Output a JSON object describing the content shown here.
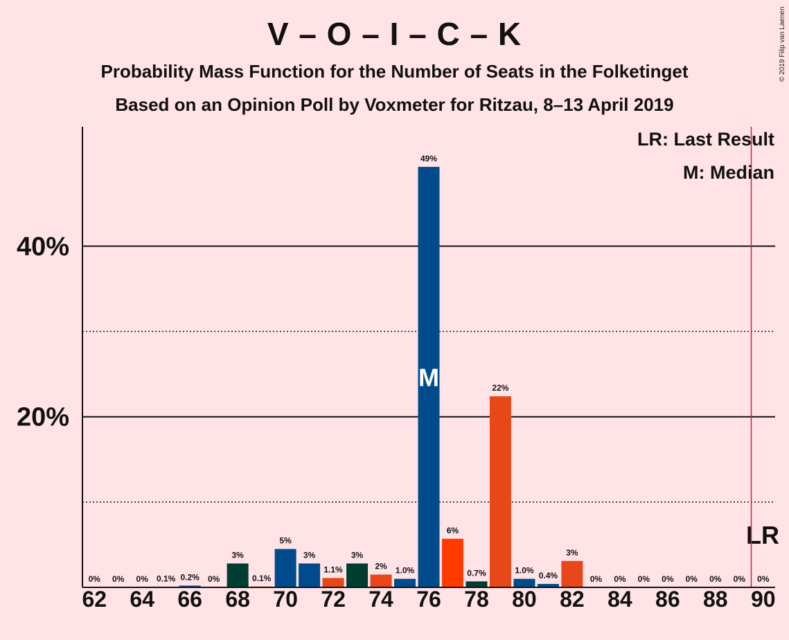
{
  "title": "V – O – I – C – K",
  "subtitle1": "Probability Mass Function for the Number of Seats in the Folketinget",
  "subtitle2": "Based on an Opinion Poll by Voxmeter for Ritzau, 8–13 April 2019",
  "copyright": "© 2019 Filip van Laenen",
  "chart_data": {
    "type": "bar",
    "x": [
      62,
      63,
      64,
      65,
      66,
      67,
      68,
      69,
      70,
      71,
      72,
      73,
      74,
      75,
      76,
      77,
      78,
      79,
      80,
      81,
      82,
      83,
      84,
      85,
      86,
      87,
      88,
      89,
      90
    ],
    "values": [
      0,
      0,
      0,
      0.05,
      0.2,
      0,
      2.8,
      0.1,
      4.5,
      2.8,
      1.1,
      2.8,
      1.5,
      1.0,
      49.3,
      5.7,
      0.7,
      22.4,
      1.0,
      0.4,
      3.1,
      0,
      0,
      0,
      0,
      0,
      0,
      0,
      0
    ],
    "labels": [
      "0%",
      "0%",
      "0%",
      "0.1%",
      "0.2%",
      "0%",
      "3%",
      "0.1%",
      "5%",
      "3%",
      "1.1%",
      "3%",
      "2%",
      "1.0%",
      "49%",
      "6%",
      "0.7%",
      "22%",
      "1.0%",
      "0.4%",
      "3%",
      "0%",
      "0%",
      "0%",
      "0%",
      "0%",
      "0%",
      "0%",
      "0%"
    ],
    "colors": [
      "#004B8C",
      "#E8471A",
      "#FF3B00",
      "#004B8C",
      "#004B8C",
      "#E8471A",
      "#003D31",
      "#FF3B00",
      "#004B8C",
      "#004B8C",
      "#E8471A",
      "#003D31",
      "#E8471A",
      "#004B8C",
      "#004B8C",
      "#FF3B00",
      "#003D31",
      "#E8471A",
      "#004B8C",
      "#004B8C",
      "#E8471A",
      "#004B8C",
      "#004B8C",
      "#004B8C",
      "#004B8C",
      "#004B8C",
      "#004B8C",
      "#004B8C",
      "#004B8C"
    ],
    "x_ticks": [
      62,
      64,
      66,
      68,
      70,
      72,
      74,
      76,
      78,
      80,
      82,
      84,
      86,
      88,
      90
    ],
    "y_ticks": [
      {
        "value": 20,
        "label": "20%"
      },
      {
        "value": 40,
        "label": "40%"
      }
    ],
    "y_minor_ticks": [
      10,
      30
    ],
    "ylim": [
      0,
      54
    ],
    "xlim": [
      61.5,
      90.5
    ],
    "median": 76,
    "median_label": "M",
    "last_result": 89.5,
    "last_result_label": "LR",
    "last_result_color": "#C0264B",
    "legend": [
      "LR: Last Result",
      "M: Median"
    ],
    "legend_position": "top-right",
    "grid": "major solid, minor dotted"
  }
}
